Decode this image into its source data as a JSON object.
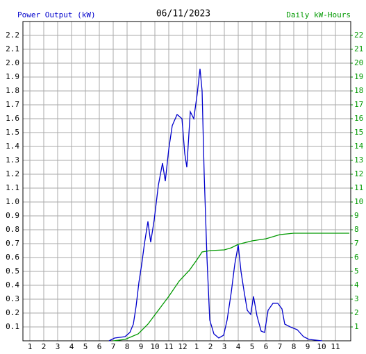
{
  "chart_data": {
    "type": "line",
    "title": "06/11/2023",
    "ylabel": "Power Output (kW)",
    "y2label": "Daily kW-Hours",
    "grid": true,
    "xlim": [
      0.5,
      24.1
    ],
    "xticks": [
      1,
      2,
      3,
      4,
      5,
      6,
      7,
      8,
      9,
      10,
      11,
      12,
      {
        "value": 13,
        "label": "1"
      },
      {
        "value": 14,
        "label": "2"
      },
      {
        "value": 15,
        "label": "3"
      },
      {
        "value": 16,
        "label": "4"
      },
      {
        "value": 17,
        "label": "5"
      },
      {
        "value": 18,
        "label": "6"
      },
      {
        "value": 19,
        "label": "7"
      },
      {
        "value": 20,
        "label": "8"
      },
      {
        "value": 21,
        "label": "9"
      },
      {
        "value": 22,
        "label": "10"
      },
      {
        "value": 23,
        "label": "11"
      }
    ],
    "ylim": [
      0,
      2.3
    ],
    "yticks": [
      0.1,
      0.2,
      0.3,
      0.4,
      0.5,
      0.6,
      0.7,
      0.8,
      0.9,
      {
        "value": 1,
        "label": "1.0"
      },
      1.1,
      1.2,
      1.3,
      1.4,
      1.5,
      1.6,
      1.7,
      1.8,
      1.9,
      {
        "value": 2,
        "label": "2.0"
      },
      2.1,
      2.2
    ],
    "y2lim": [
      0,
      23
    ],
    "y2ticks": [
      1,
      2,
      3,
      4,
      5,
      6,
      7,
      8,
      9,
      10,
      11,
      12,
      13,
      14,
      15,
      16,
      17,
      18,
      19,
      20,
      21,
      22
    ],
    "series": [
      {
        "name": "Power Output (kW)",
        "color": "#0000cc",
        "x": [
          6.7,
          7.1,
          7.85,
          8.2,
          8.45,
          8.65,
          8.85,
          9.05,
          9.25,
          9.5,
          9.7,
          9.95,
          10.25,
          10.55,
          10.75,
          11.0,
          11.25,
          11.6,
          11.95,
          12.15,
          12.3,
          12.55,
          12.8,
          13.05,
          13.25,
          13.4,
          13.55,
          13.75,
          13.95,
          14.25,
          14.6,
          14.95,
          15.2,
          15.5,
          15.75,
          16.0,
          16.2,
          16.4,
          16.65,
          16.9,
          17.1,
          17.35,
          17.65,
          17.9,
          18.15,
          18.5,
          18.85,
          19.15,
          19.35,
          19.75,
          20.25,
          20.7,
          21.1,
          22.05
        ],
        "values": [
          0.0,
          0.02,
          0.03,
          0.06,
          0.12,
          0.25,
          0.42,
          0.55,
          0.7,
          0.86,
          0.71,
          0.87,
          1.12,
          1.28,
          1.15,
          1.38,
          1.55,
          1.63,
          1.6,
          1.35,
          1.25,
          1.65,
          1.6,
          1.78,
          1.96,
          1.8,
          1.2,
          0.6,
          0.15,
          0.05,
          0.02,
          0.04,
          0.15,
          0.35,
          0.55,
          0.69,
          0.5,
          0.37,
          0.22,
          0.19,
          0.32,
          0.18,
          0.07,
          0.06,
          0.22,
          0.27,
          0.27,
          0.23,
          0.12,
          0.1,
          0.08,
          0.03,
          0.01,
          0.0
        ]
      },
      {
        "name": "Daily kW-Hours",
        "color": "#009900",
        "axis": "y2",
        "x": [
          7.0,
          7.85,
          8.8,
          9.5,
          10.25,
          11.0,
          11.75,
          12.5,
          13.0,
          13.4,
          14.0,
          15.0,
          15.5,
          16.0,
          17.0,
          18.0,
          19.0,
          20.0,
          24.0
        ],
        "values": [
          0.0,
          0.1,
          0.5,
          1.2,
          2.2,
          3.2,
          4.3,
          5.1,
          5.8,
          6.4,
          6.5,
          6.55,
          6.7,
          6.95,
          7.2,
          7.35,
          7.65,
          7.75,
          7.75
        ]
      }
    ]
  }
}
